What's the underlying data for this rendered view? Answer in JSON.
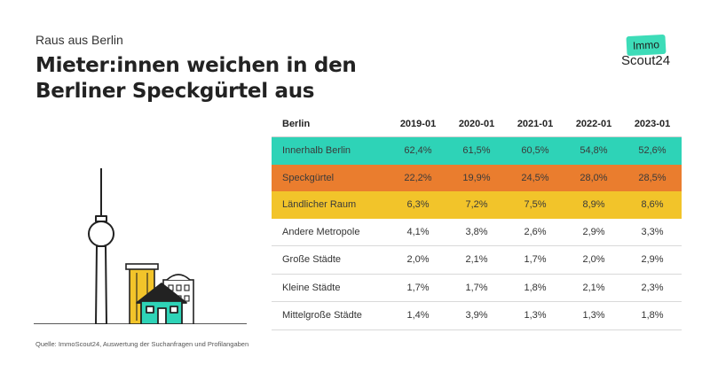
{
  "header": {
    "kicker": "Raus aus Berlin",
    "title": "Mieter:innen weichen in den Berliner Speckgürtel aus"
  },
  "logo": {
    "top": "Immo",
    "bottom": "Scout24",
    "accent": "#3ddcb8"
  },
  "chart_data": {
    "type": "table",
    "row_header": "Berlin",
    "columns": [
      "2019-01",
      "2020-01",
      "2021-01",
      "2022-01",
      "2023-01"
    ],
    "rows": [
      {
        "label": "Innerhalb Berlin",
        "values": [
          "62,4%",
          "61,5%",
          "60,5%",
          "54,8%",
          "52,6%"
        ],
        "color": "#2ed3b7"
      },
      {
        "label": "Speckgürtel",
        "values": [
          "22,2%",
          "19,9%",
          "24,5%",
          "28,0%",
          "28,5%"
        ],
        "color": "#ea7d2e"
      },
      {
        "label": "Ländlicher Raum",
        "values": [
          "6,3%",
          "7,2%",
          "7,5%",
          "8,9%",
          "8,6%"
        ],
        "color": "#f2c42a"
      },
      {
        "label": "Andere Metropole",
        "values": [
          "4,1%",
          "3,8%",
          "2,6%",
          "2,9%",
          "3,3%"
        ]
      },
      {
        "label": "Große Städte",
        "values": [
          "2,0%",
          "2,1%",
          "1,7%",
          "2,0%",
          "2,9%"
        ]
      },
      {
        "label": "Kleine Städte",
        "values": [
          "1,7%",
          "1,7%",
          "1,8%",
          "2,1%",
          "2,3%"
        ]
      },
      {
        "label": "Mittelgroße Städte",
        "values": [
          "1,4%",
          "3,9%",
          "1,3%",
          "1,3%",
          "1,8%"
        ]
      }
    ]
  },
  "source": "Quelle: ImmoScout24, Auswertung der Suchanfragen und Profilangaben",
  "illustration": {
    "tower_icon": "tv-tower-icon",
    "house_icon": "house-icon",
    "building_icon": "building-icon",
    "house_color": "#2ed3b7",
    "building_color": "#f2c42a"
  }
}
